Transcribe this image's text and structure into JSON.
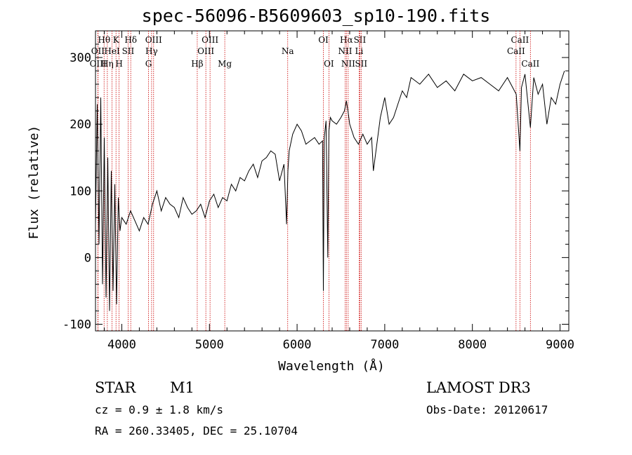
{
  "chart_data": {
    "type": "line",
    "title": "spec-56096-B5609603_sp10-190.fits",
    "xlabel": "Wavelength (Å)",
    "ylabel": "Flux (relative)",
    "xlim": [
      3700,
      9100
    ],
    "ylim": [
      -110,
      340
    ],
    "xticks": [
      4000,
      5000,
      6000,
      7000,
      8000,
      9000
    ],
    "yticks": [
      -100,
      0,
      100,
      200,
      300
    ],
    "series": [
      {
        "x": [
          3700,
          3720,
          3740,
          3760,
          3780,
          3800,
          3820,
          3840,
          3860,
          3880,
          3900,
          3920,
          3940,
          3960,
          3980,
          4000,
          4050,
          4100,
          4150,
          4200,
          4250,
          4300,
          4350,
          4400,
          4450,
          4500,
          4550,
          4600,
          4650,
          4700,
          4750,
          4800,
          4850,
          4900,
          4950,
          5000,
          5050,
          5100,
          5150,
          5200,
          5250,
          5300,
          5350,
          5400,
          5450,
          5500,
          5550,
          5600,
          5650,
          5700,
          5750,
          5800,
          5850,
          5880,
          5895,
          5910,
          5950,
          6000,
          6050,
          6100,
          6150,
          6200,
          6250,
          6290,
          6300,
          6310,
          6330,
          6350,
          6363,
          6380,
          6400,
          6450,
          6500,
          6540,
          6563,
          6580,
          6600,
          6650,
          6700,
          6750,
          6800,
          6850,
          6870,
          6900,
          6950,
          7000,
          7050,
          7100,
          7150,
          7200,
          7250,
          7300,
          7400,
          7500,
          7600,
          7700,
          7800,
          7900,
          8000,
          8100,
          8200,
          8300,
          8400,
          8500,
          8542,
          8560,
          8600,
          8662,
          8700,
          8750,
          8800,
          8850,
          8900,
          8950,
          9000,
          9050
        ],
        "y": [
          50,
          230,
          20,
          240,
          -40,
          180,
          -60,
          150,
          -80,
          130,
          -50,
          110,
          -70,
          90,
          40,
          60,
          50,
          70,
          55,
          40,
          60,
          50,
          80,
          100,
          70,
          90,
          80,
          75,
          60,
          90,
          75,
          65,
          70,
          80,
          60,
          85,
          95,
          75,
          90,
          85,
          110,
          100,
          120,
          115,
          130,
          140,
          120,
          145,
          150,
          160,
          155,
          115,
          140,
          50,
          130,
          160,
          185,
          200,
          190,
          170,
          175,
          180,
          170,
          175,
          -50,
          180,
          205,
          0,
          190,
          210,
          205,
          200,
          210,
          220,
          235,
          220,
          200,
          180,
          170,
          185,
          170,
          180,
          130,
          160,
          210,
          240,
          200,
          210,
          230,
          250,
          240,
          270,
          260,
          275,
          255,
          265,
          250,
          275,
          265,
          270,
          260,
          250,
          270,
          245,
          160,
          255,
          275,
          195,
          270,
          245,
          260,
          200,
          240,
          230,
          260,
          280
        ]
      }
    ],
    "line_ticks": [
      {
        "name": "Hθ",
        "x": 3798,
        "row": 1
      },
      {
        "name": "OII",
        "x": 3727,
        "row": 2
      },
      {
        "name": "OIII",
        "x": 3729,
        "row": 3
      },
      {
        "name": "K",
        "x": 3934,
        "row": 1
      },
      {
        "name": "HeI",
        "x": 3889,
        "row": 2
      },
      {
        "name": "Hη",
        "x": 3835,
        "row": 3
      },
      {
        "name": "Hδ",
        "x": 4102,
        "row": 1
      },
      {
        "name": "SII",
        "x": 4072,
        "row": 2
      },
      {
        "name": "H",
        "x": 3969,
        "row": 3
      },
      {
        "name": "OIII",
        "x": 4363,
        "row": 1
      },
      {
        "name": "Hγ",
        "x": 4340,
        "row": 2
      },
      {
        "name": "G",
        "x": 4305,
        "row": 3
      },
      {
        "name": "OIII",
        "x": 5007,
        "row": 1
      },
      {
        "name": "OIII",
        "x": 4959,
        "row": 2
      },
      {
        "name": "Hβ",
        "x": 4861,
        "row": 3
      },
      {
        "name": "Mg",
        "x": 5175,
        "row": 3
      },
      {
        "name": "Na",
        "x": 5893,
        "row": 2
      },
      {
        "name": "OI",
        "x": 6300,
        "row": 1
      },
      {
        "name": "OI",
        "x": 6363,
        "row": 3
      },
      {
        "name": "Hα",
        "x": 6563,
        "row": 1
      },
      {
        "name": "SII",
        "x": 6716,
        "row": 1
      },
      {
        "name": "NII",
        "x": 6548,
        "row": 2
      },
      {
        "name": "Li",
        "x": 6708,
        "row": 2
      },
      {
        "name": "NII",
        "x": 6583,
        "row": 3
      },
      {
        "name": "SII",
        "x": 6731,
        "row": 3
      },
      {
        "name": "CaII",
        "x": 8542,
        "row": 1
      },
      {
        "name": "CaII",
        "x": 8498,
        "row": 2
      },
      {
        "name": "CaII",
        "x": 8662,
        "row": 3
      }
    ],
    "grid": false
  },
  "info": {
    "object_type": "STAR",
    "subclass": "M1",
    "survey": "LAMOST DR3",
    "cz": "cz = 0.9 ± 1.8 km/s",
    "obs_date": "Obs-Date: 20120617",
    "coords": "RA = 260.33405, DEC =  25.10704"
  },
  "colors": {
    "line_marker": "#cc0000",
    "spectrum": "#000000"
  }
}
